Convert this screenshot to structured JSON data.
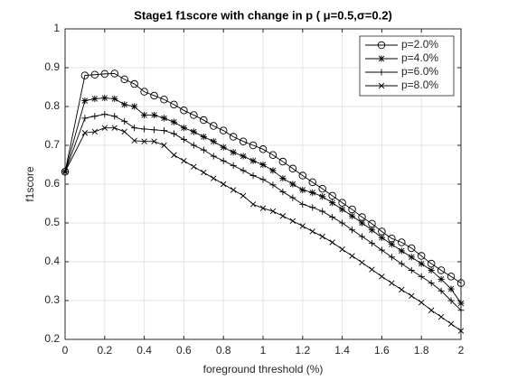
{
  "chart_data": {
    "type": "line",
    "title": "Stage1 f1score with change in p ( μ=0.5,σ=0.2)",
    "x_label": "foreground threshold (%)",
    "y_label": "f1score",
    "x": [
      0,
      0.1,
      0.15,
      0.2,
      0.25,
      0.3,
      0.35,
      0.4,
      0.45,
      0.5,
      0.55,
      0.6,
      0.65,
      0.7,
      0.75,
      0.8,
      0.85,
      0.9,
      0.95,
      1,
      1.05,
      1.1,
      1.15,
      1.2,
      1.25,
      1.3,
      1.35,
      1.4,
      1.45,
      1.5,
      1.55,
      1.6,
      1.65,
      1.7,
      1.75,
      1.8,
      1.85,
      1.9,
      1.95,
      2
    ],
    "series": [
      {
        "name": "p=2.0%",
        "color": "#000000",
        "marker": "circle",
        "values": [
          0.632,
          0.88,
          0.882,
          0.884,
          0.885,
          0.87,
          0.858,
          0.838,
          0.828,
          0.818,
          0.805,
          0.79,
          0.778,
          0.765,
          0.75,
          0.738,
          0.722,
          0.71,
          0.7,
          0.69,
          0.675,
          0.658,
          0.64,
          0.622,
          0.605,
          0.588,
          0.57,
          0.552,
          0.535,
          0.515,
          0.498,
          0.478,
          0.46,
          0.45,
          0.435,
          0.415,
          0.395,
          0.378,
          0.362,
          0.345
        ]
      },
      {
        "name": "p=4.0%",
        "color": "#000000",
        "marker": "asterisk",
        "values": [
          0.632,
          0.815,
          0.82,
          0.822,
          0.82,
          0.805,
          0.8,
          0.778,
          0.778,
          0.77,
          0.76,
          0.745,
          0.735,
          0.722,
          0.71,
          0.695,
          0.682,
          0.672,
          0.66,
          0.65,
          0.635,
          0.615,
          0.6,
          0.585,
          0.578,
          0.568,
          0.552,
          0.535,
          0.518,
          0.5,
          0.482,
          0.462,
          0.445,
          0.428,
          0.412,
          0.395,
          0.378,
          0.355,
          0.33,
          0.293
        ]
      },
      {
        "name": "p=6.0%",
        "color": "#000000",
        "marker": "plus",
        "values": [
          0.632,
          0.77,
          0.775,
          0.78,
          0.775,
          0.762,
          0.745,
          0.742,
          0.74,
          0.738,
          0.73,
          0.715,
          0.7,
          0.688,
          0.672,
          0.66,
          0.648,
          0.635,
          0.622,
          0.612,
          0.598,
          0.58,
          0.565,
          0.548,
          0.54,
          0.53,
          0.515,
          0.5,
          0.482,
          0.465,
          0.448,
          0.43,
          0.412,
          0.395,
          0.378,
          0.362,
          0.345,
          0.325,
          0.3,
          0.275
        ]
      },
      {
        "name": "p=8.0%",
        "color": "#000000",
        "marker": "x",
        "values": [
          0.632,
          0.732,
          0.735,
          0.745,
          0.745,
          0.735,
          0.712,
          0.71,
          0.71,
          0.7,
          0.675,
          0.66,
          0.645,
          0.63,
          0.615,
          0.6,
          0.585,
          0.57,
          0.548,
          0.538,
          0.53,
          0.518,
          0.505,
          0.492,
          0.478,
          0.465,
          0.45,
          0.432,
          0.415,
          0.398,
          0.38,
          0.362,
          0.345,
          0.328,
          0.312,
          0.295,
          0.275,
          0.258,
          0.24,
          0.222
        ]
      }
    ],
    "xlim": [
      0,
      2
    ],
    "xticks": [
      0,
      0.2,
      0.4,
      0.6,
      0.8,
      1,
      1.2,
      1.4,
      1.6,
      1.8,
      2
    ],
    "ylim": [
      0.2,
      1
    ],
    "yticks": [
      0.2,
      0.3,
      0.4,
      0.5,
      0.6,
      0.7,
      0.8,
      0.9,
      1
    ],
    "grid": true,
    "legend": "northeast"
  }
}
